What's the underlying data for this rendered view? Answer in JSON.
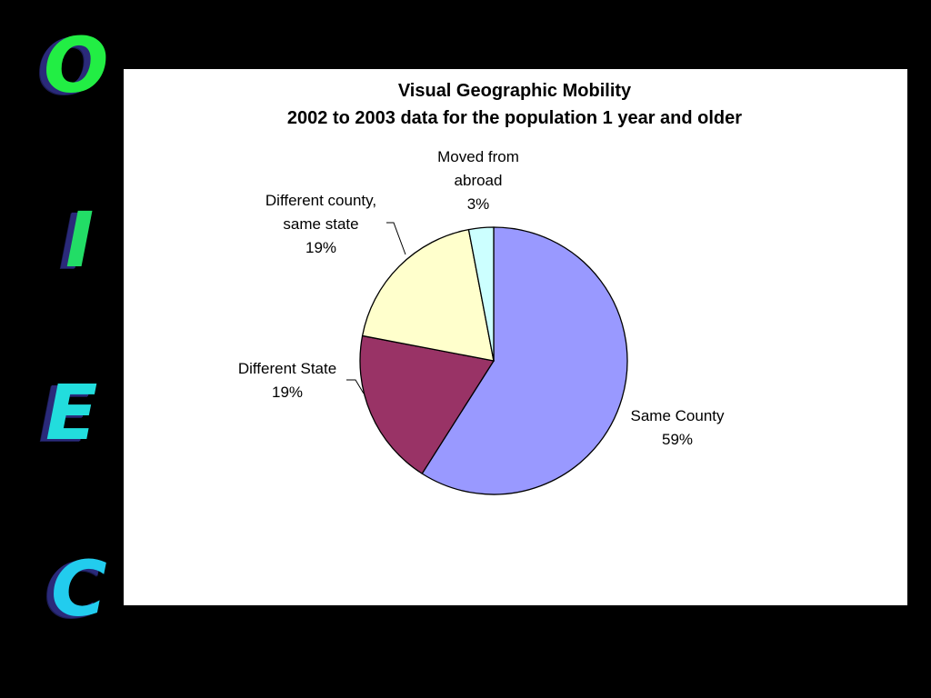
{
  "side_banner": {
    "letters": [
      {
        "char": "O",
        "color": "#22ee44"
      },
      {
        "char": "I",
        "color": "#22dd66"
      },
      {
        "char": "E",
        "color": "#22dddd"
      },
      {
        "char": "C",
        "color": "#22ccee"
      }
    ]
  },
  "chart_data": {
    "type": "pie",
    "title": "Visual Geographic Mobility",
    "subtitle": "2002 to 2003 data for the population 1 year and older",
    "start_angle_deg": 0,
    "direction": "clockwise",
    "slices": [
      {
        "label_lines": [
          "Same County"
        ],
        "percent_label": "59%",
        "value": 59,
        "color": "#9999ff"
      },
      {
        "label_lines": [
          "Different State"
        ],
        "percent_label": "19%",
        "value": 19,
        "color": "#993366"
      },
      {
        "label_lines": [
          "Different county,",
          "same state"
        ],
        "percent_label": "19%",
        "value": 19,
        "color": "#ffffcc"
      },
      {
        "label_lines": [
          "Moved from",
          "abroad"
        ],
        "percent_label": "3%",
        "value": 3,
        "color": "#ccffff"
      }
    ],
    "legend": "none"
  }
}
